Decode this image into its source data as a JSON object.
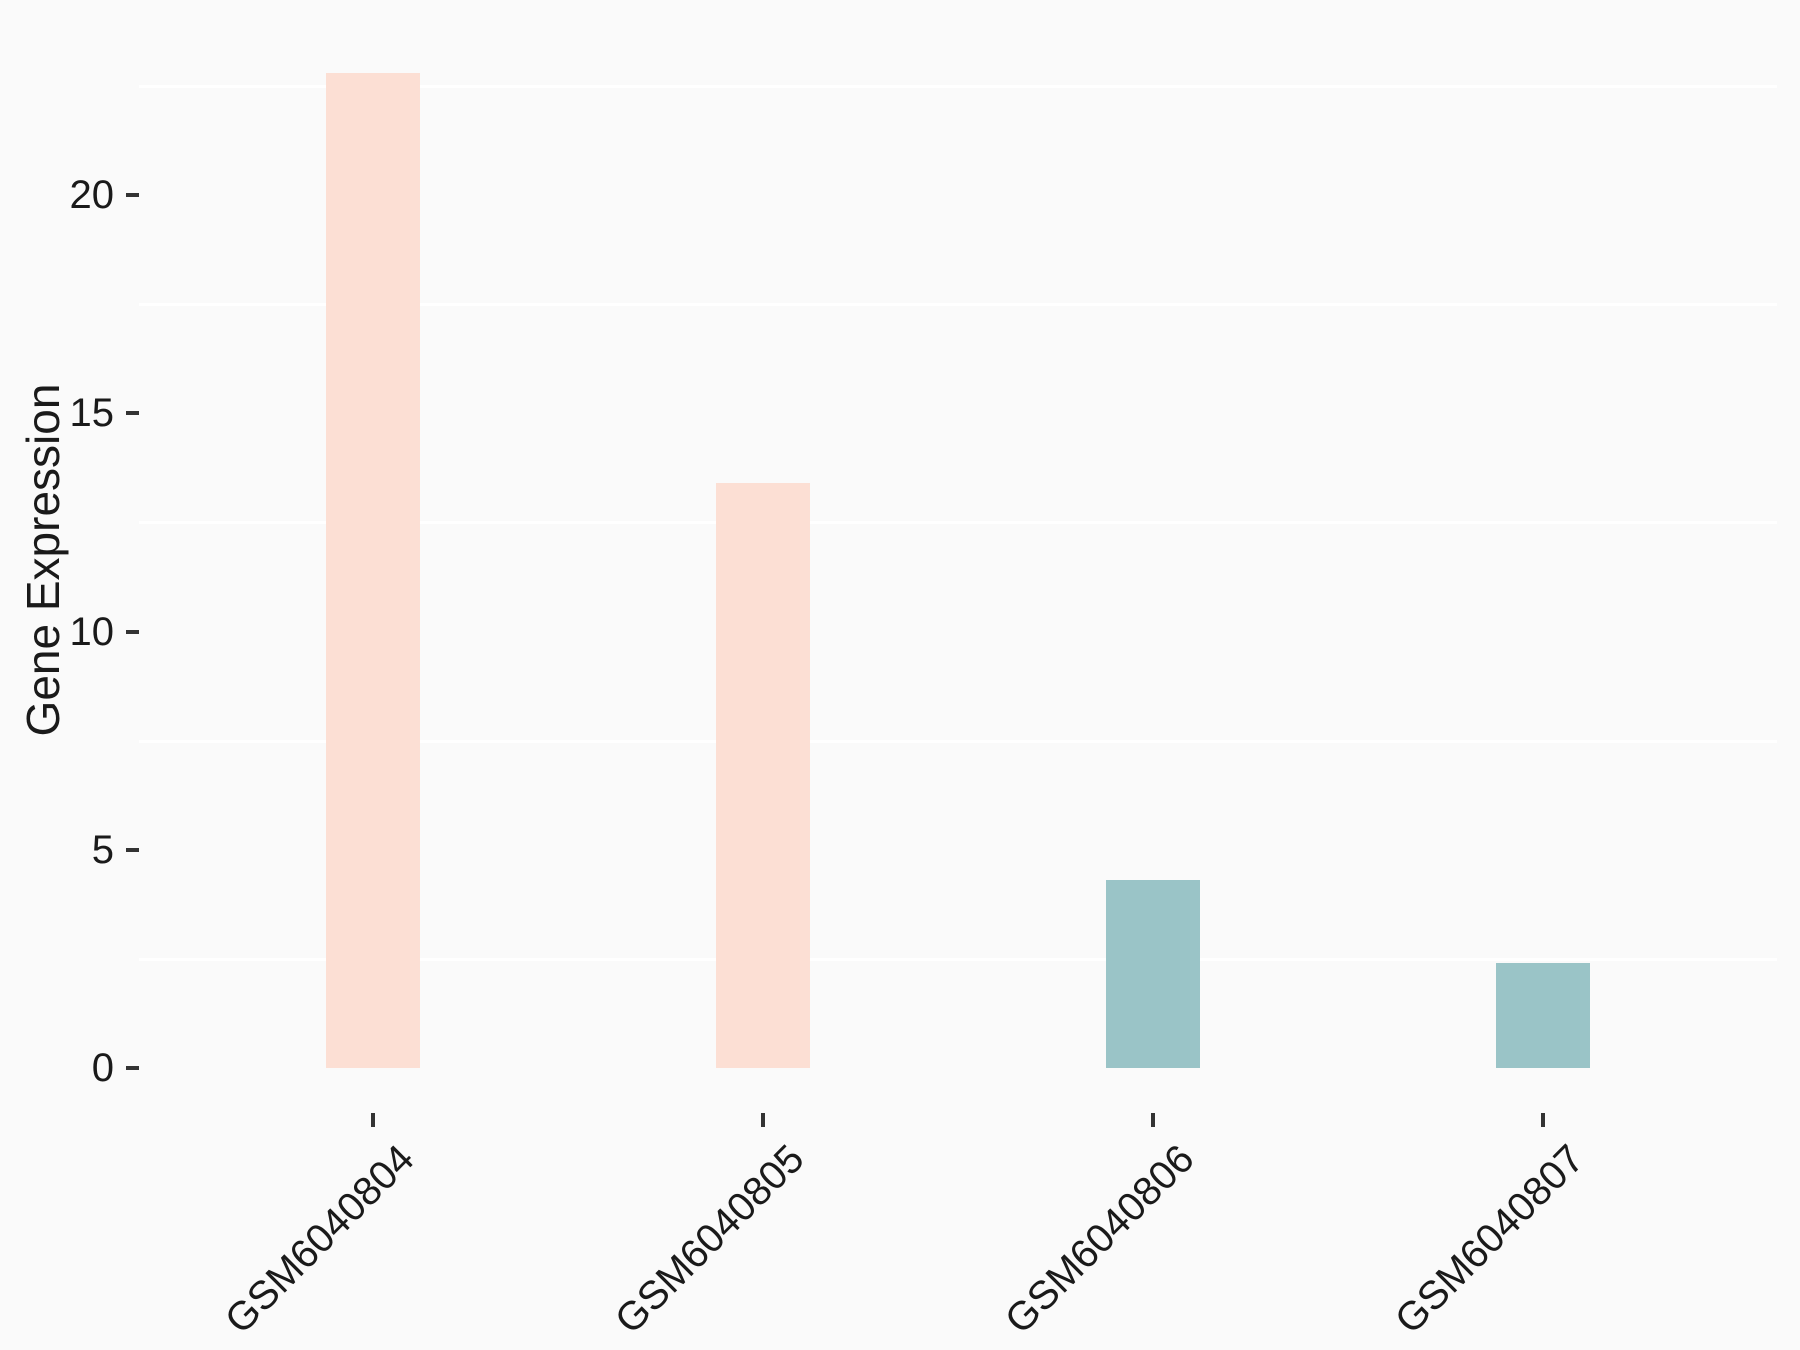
{
  "chart_data": {
    "type": "bar",
    "title": "",
    "categories": [
      "GSM6040804",
      "GSM6040805",
      "GSM6040806",
      "GSM6040807"
    ],
    "values": [
      22.8,
      13.4,
      4.3,
      2.4
    ],
    "bar_colors": [
      "#FCDFD4",
      "#FCDFD4",
      "#9AC4C7",
      "#9AC4C7"
    ],
    "xlabel": "",
    "ylabel": "Gene Expression",
    "y_ticks": [
      0,
      5,
      10,
      15,
      20
    ],
    "y_minor_gridlines": [
      2.5,
      7.5,
      12.5,
      17.5,
      22.5
    ],
    "ylim": [
      -1.15,
      24.0
    ],
    "grid": "minor-only",
    "legend": "none",
    "colors": {
      "background": "#FAFAFA",
      "gridline": "#FFFFFF",
      "tick_mark": "#333333",
      "text": "#1A1A1A"
    }
  }
}
